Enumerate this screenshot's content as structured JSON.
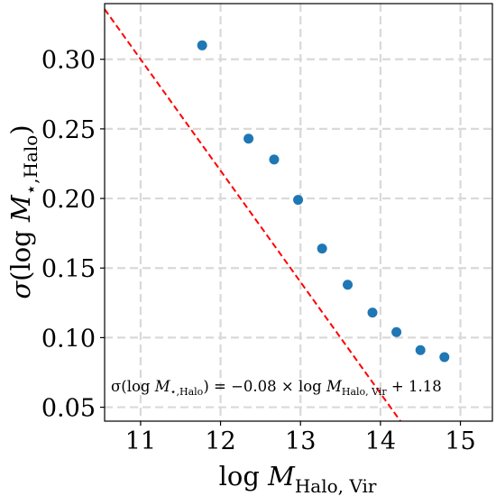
{
  "chart_data": {
    "type": "scatter",
    "xlabel": "log M_Halo, Vir",
    "ylabel": "σ(log M_⋆,Halo)",
    "xlim": [
      10.55,
      15.4
    ],
    "ylim": [
      0.04,
      0.34
    ],
    "grid": true,
    "x_ticks": [
      11,
      12,
      13,
      14,
      15
    ],
    "y_ticks": [
      0.05,
      0.1,
      0.15,
      0.2,
      0.25,
      0.3
    ],
    "x_tick_labels": [
      "11",
      "12",
      "13",
      "14",
      "15"
    ],
    "y_tick_labels": [
      "0.05",
      "0.10",
      "0.15",
      "0.20",
      "0.25",
      "0.30"
    ],
    "series": [
      {
        "type": "scatter",
        "color": "#1f77b4",
        "x": [
          11.77,
          12.35,
          12.67,
          12.97,
          13.27,
          13.59,
          13.9,
          14.2,
          14.5,
          14.8
        ],
        "y": [
          0.31,
          0.243,
          0.228,
          0.199,
          0.164,
          0.138,
          0.118,
          0.104,
          0.091,
          0.086
        ]
      },
      {
        "type": "line",
        "style": "dashed",
        "color": "#ff0000",
        "slope": -0.08,
        "intercept": 1.18
      }
    ],
    "annotation": "σ(log M_⋆,Halo) = −0.08 × log M_Halo, Vir + 1.18"
  }
}
